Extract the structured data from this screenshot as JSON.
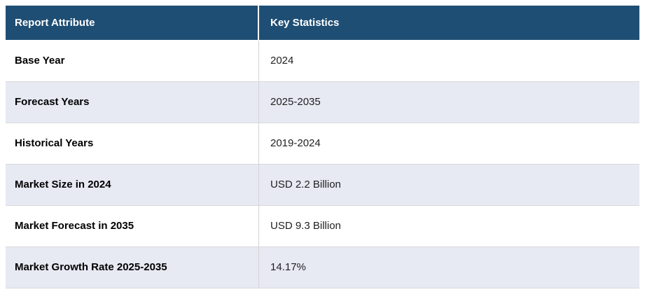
{
  "chart_data": {
    "type": "table",
    "columns": [
      "Report Attribute",
      "Key Statistics"
    ],
    "rows": [
      [
        "Base Year",
        "2024"
      ],
      [
        "Forecast Years",
        "2025-2035"
      ],
      [
        "Historical Years",
        "2019-2024"
      ],
      [
        "Market Size in 2024",
        "USD 2.2 Billion"
      ],
      [
        "Market Forecast in 2035",
        "USD 9.3 Billion"
      ],
      [
        "Market Growth Rate 2025-2035",
        "14.17%"
      ]
    ]
  },
  "style": {
    "header_bg": "#1f4e74",
    "header_text_color": "#ffffff",
    "row_bg": "#ffffff",
    "alt_row_bg": "#e7e9f3",
    "border_color": "#d9d9d9",
    "attribute_text_color": "#000000",
    "value_text_color": "#222222"
  }
}
